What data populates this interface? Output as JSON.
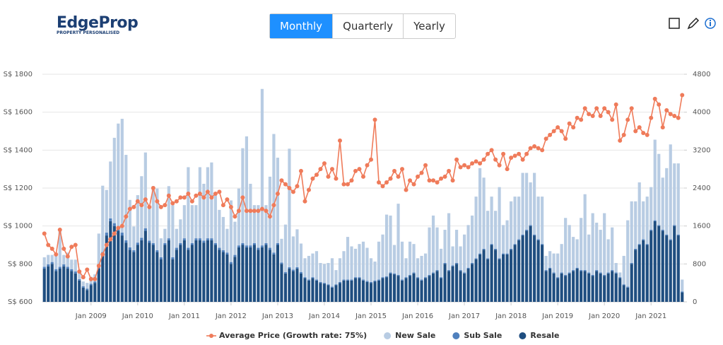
{
  "logo": {
    "name": "EdgeProp",
    "tagline": "PROPERTY PERSONALISED"
  },
  "tabs": [
    "Monthly",
    "Quarterly",
    "Yearly"
  ],
  "chart_data": {
    "type": "combo",
    "categories": [
      null,
      null,
      null,
      null,
      null,
      null,
      null,
      null,
      null,
      null,
      null,
      null,
      "Jan 2009",
      null,
      null,
      null,
      null,
      null,
      null,
      null,
      null,
      null,
      null,
      null,
      "Jan 2010",
      null,
      null,
      null,
      null,
      null,
      null,
      null,
      null,
      null,
      null,
      null,
      "Jan 2011",
      null,
      null,
      null,
      null,
      null,
      null,
      null,
      null,
      null,
      null,
      null,
      "Jan 2012",
      null,
      null,
      null,
      null,
      null,
      null,
      null,
      null,
      null,
      null,
      null,
      "Jan 2013",
      null,
      null,
      null,
      null,
      null,
      null,
      null,
      null,
      null,
      null,
      null,
      "Jan 2014",
      null,
      null,
      null,
      null,
      null,
      null,
      null,
      null,
      null,
      null,
      null,
      "Jan 2015",
      null,
      null,
      null,
      null,
      null,
      null,
      null,
      null,
      null,
      null,
      null,
      "Jan 2016",
      null,
      null,
      null,
      null,
      null,
      null,
      null,
      null,
      null,
      null,
      null,
      "Jan 2017",
      null,
      null,
      null,
      null,
      null,
      null,
      null,
      null,
      null,
      null,
      null,
      "Jan 2018",
      null,
      null,
      null,
      null,
      null,
      null,
      null,
      null,
      null,
      null,
      null,
      "Jan 2019",
      null,
      null,
      null,
      null,
      null,
      null,
      null,
      null,
      null,
      null,
      null,
      "Jan 2020",
      null,
      null,
      null,
      null,
      null,
      null,
      null,
      null,
      null,
      null,
      null,
      "Jan 2021",
      null,
      null,
      null,
      null,
      null,
      null,
      null,
      null
    ],
    "series": [
      {
        "name": "Average Price (Growth rate: 75%)",
        "type": "line",
        "axis": "y",
        "color": "#ef7b5a",
        "values": [
          960,
          900,
          880,
          850,
          980,
          880,
          840,
          890,
          900,
          760,
          730,
          770,
          720,
          720,
          790,
          850,
          900,
          930,
          960,
          990,
          1000,
          1050,
          1090,
          1100,
          1130,
          1110,
          1140,
          1100,
          1200,
          1130,
          1100,
          1110,
          1160,
          1120,
          1130,
          1150,
          1150,
          1170,
          1130,
          1160,
          1170,
          1150,
          1180,
          1150,
          1170,
          1180,
          1110,
          1140,
          1100,
          1050,
          1080,
          1150,
          1080,
          1080,
          1080,
          1080,
          1090,
          1080,
          1050,
          1110,
          1170,
          1240,
          1220,
          1200,
          1180,
          1210,
          1290,
          1130,
          1190,
          1250,
          1270,
          1300,
          1330,
          1260,
          1300,
          1250,
          1450,
          1220,
          1220,
          1240,
          1290,
          1300,
          1260,
          1320,
          1350,
          1560,
          1230,
          1210,
          1230,
          1250,
          1290,
          1260,
          1300,
          1190,
          1240,
          1220,
          1260,
          1280,
          1320,
          1240,
          1240,
          1230,
          1250,
          1260,
          1290,
          1240,
          1350,
          1310,
          1320,
          1310,
          1330,
          1340,
          1330,
          1350,
          1380,
          1400,
          1350,
          1320,
          1380,
          1300,
          1360,
          1370,
          1380,
          1350,
          1380,
          1410,
          1420,
          1410,
          1400,
          1460,
          1480,
          1500,
          1520,
          1500,
          1460,
          1540,
          1520,
          1570,
          1560,
          1620,
          1590,
          1580,
          1620,
          1580,
          1620,
          1600,
          1560,
          1640,
          1450,
          1480,
          1560,
          1620,
          1500,
          1520,
          1490,
          1480,
          1570,
          1670,
          1640,
          1520,
          1610,
          1590,
          1580,
          1570,
          1690
        ]
      },
      {
        "name": "New Sale",
        "type": "bar",
        "axis": "y2",
        "color": "#b8cce3",
        "values": [
          200,
          200,
          150,
          300,
          800,
          200,
          300,
          200,
          250,
          150,
          100,
          120,
          150,
          150,
          700,
          1400,
          900,
          1200,
          1800,
          2200,
          2400,
          1800,
          1000,
          500,
          1000,
          1300,
          1600,
          700,
          1200,
          1300,
          400,
          300,
          1100,
          1100,
          400,
          500,
          700,
          1700,
          800,
          700,
          1500,
          1200,
          1500,
          1600,
          1000,
          800,
          700,
          500,
          1300,
          700,
          1200,
          2000,
          2300,
          1300,
          800,
          900,
          3300,
          800,
          1500,
          2500,
          1800,
          500,
          1000,
          2500,
          700,
          800,
          600,
          400,
          500,
          500,
          600,
          400,
          400,
          450,
          600,
          300,
          500,
          600,
          900,
          700,
          600,
          700,
          800,
          700,
          500,
          400,
          800,
          900,
          1300,
          1200,
          600,
          1500,
          800,
          400,
          700,
          600,
          400,
          500,
          500,
          1000,
          1200,
          900,
          600,
          700,
          1200,
          400,
          700,
          500,
          800,
          900,
          1000,
          1300,
          1800,
          1500,
          1000,
          1000,
          800,
          1500,
          600,
          700,
          1000,
          1000,
          900,
          1300,
          1200,
          900,
          1300,
          900,
          1000,
          300,
          350,
          400,
          500,
          600,
          1200,
          1000,
          700,
          600,
          1100,
          1600,
          800,
          1300,
          1000,
          900,
          1300,
          700,
          900,
          200,
          100,
          600,
          1400,
          1300,
          1000,
          1300,
          800,
          1000,
          900,
          1700,
          1500,
          1100,
          1400,
          2000,
          1300,
          1500,
          250
        ]
      },
      {
        "name": "Sub Sale",
        "type": "bar",
        "axis": "y2",
        "color": "#4f80bd",
        "values": [
          40,
          40,
          40,
          40,
          40,
          40,
          40,
          40,
          40,
          30,
          30,
          30,
          30,
          30,
          40,
          50,
          60,
          60,
          60,
          60,
          60,
          50,
          50,
          40,
          50,
          50,
          50,
          40,
          40,
          40,
          40,
          40,
          40,
          40,
          40,
          40,
          40,
          40,
          40,
          40,
          40,
          40,
          40,
          40,
          40,
          40,
          40,
          40,
          40,
          40,
          40,
          40,
          40,
          40,
          40,
          40,
          40,
          40,
          40,
          40,
          40,
          30,
          30,
          30,
          30,
          30,
          30,
          20,
          20,
          20,
          20,
          20,
          20,
          20,
          20,
          20,
          20,
          20,
          20,
          20,
          20,
          20,
          20,
          20,
          20,
          20,
          20,
          20,
          20,
          20,
          20,
          20,
          20,
          20,
          20,
          20,
          20,
          20,
          20,
          20,
          20,
          20,
          20,
          20,
          20,
          20,
          20,
          20,
          20,
          20,
          20,
          20,
          20,
          20,
          20,
          20,
          20,
          20,
          20,
          20,
          20,
          20,
          20,
          20,
          20,
          20,
          20,
          20,
          20,
          20,
          20,
          20,
          20,
          20,
          20,
          20,
          20,
          20,
          20,
          20,
          20,
          20,
          20,
          20,
          20,
          20,
          20,
          20,
          20,
          20,
          20,
          20,
          20,
          20,
          20,
          20,
          20,
          20,
          20,
          20,
          20,
          20,
          20,
          20,
          20
        ]
      },
      {
        "name": "Resale",
        "type": "bar",
        "axis": "y2",
        "color": "#1f4e80",
        "values": [
          700,
          750,
          800,
          650,
          700,
          750,
          700,
          650,
          600,
          450,
          300,
          250,
          350,
          400,
          700,
          1000,
          1400,
          1700,
          1600,
          1500,
          1400,
          1250,
          1100,
          1050,
          1200,
          1300,
          1500,
          1250,
          1200,
          1050,
          900,
          1200,
          1300,
          900,
          1100,
          1200,
          1300,
          1100,
          1200,
          1300,
          1300,
          1250,
          1300,
          1300,
          1200,
          1100,
          1050,
          1000,
          800,
          950,
          1150,
          1200,
          1150,
          1150,
          1200,
          1100,
          1150,
          1200,
          1100,
          1000,
          1200,
          800,
          600,
          700,
          650,
          700,
          600,
          500,
          450,
          500,
          450,
          400,
          380,
          350,
          300,
          350,
          400,
          450,
          450,
          450,
          500,
          500,
          450,
          420,
          400,
          430,
          450,
          500,
          520,
          600,
          580,
          550,
          450,
          500,
          550,
          600,
          500,
          450,
          500,
          550,
          600,
          650,
          500,
          800,
          650,
          750,
          800,
          650,
          600,
          700,
          800,
          900,
          1000,
          1100,
          900,
          1200,
          1100,
          900,
          1000,
          1000,
          1100,
          1200,
          1300,
          1400,
          1500,
          1600,
          1400,
          1300,
          1200,
          650,
          700,
          600,
          500,
          600,
          550,
          600,
          650,
          700,
          650,
          650,
          600,
          550,
          650,
          600,
          550,
          600,
          650,
          600,
          500,
          350,
          300,
          800,
          1100,
          1200,
          1300,
          1200,
          1500,
          1700,
          1600,
          1500,
          1400,
          1300,
          1600,
          1400,
          200
        ]
      }
    ],
    "ylim": [
      600,
      1800
    ],
    "yticks": [
      {
        "value": 600,
        "label": "S$ 600"
      },
      {
        "value": 800,
        "label": "S$ 800"
      },
      {
        "value": 1000,
        "label": "S$ 1000"
      },
      {
        "value": 1200,
        "label": "S$ 1200"
      },
      {
        "value": 1400,
        "label": "S$ 1400"
      },
      {
        "value": 1600,
        "label": "S$ 1600"
      },
      {
        "value": 1800,
        "label": "S$ 1800"
      }
    ],
    "y2lim": [
      0,
      4800
    ],
    "y2ticks": [
      0,
      800,
      1600,
      2400,
      3200,
      4000,
      4800
    ],
    "grid": true,
    "legend": "bottom"
  }
}
